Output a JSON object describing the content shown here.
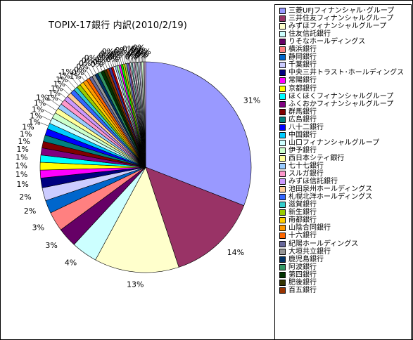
{
  "chart_data": {
    "type": "pie",
    "title": "TOPIX-17銀行 内訳(2010/2/19)",
    "legend_position": "right",
    "start": "top",
    "direction": "clockwise",
    "slices": [
      {
        "label": "三菱UFJフィナンシャル･グループ",
        "value": 31,
        "color": "#9999ff"
      },
      {
        "label": "三井住友フィナンシャルグループ",
        "value": 14,
        "color": "#993366"
      },
      {
        "label": "みずほフィナンシャルグループ",
        "value": 13,
        "color": "#ffffcc"
      },
      {
        "label": "住友信託銀行",
        "value": 4,
        "color": "#ccffff"
      },
      {
        "label": "りそなホールディングス",
        "value": 3,
        "color": "#660066"
      },
      {
        "label": "横浜銀行",
        "value": 3,
        "color": "#ff8080"
      },
      {
        "label": "静岡銀行",
        "value": 2,
        "color": "#0066cc"
      },
      {
        "label": "千葉銀行",
        "value": 2,
        "color": "#ccccff"
      },
      {
        "label": "中央三井トラスト･ホールディングス",
        "value": 1.5,
        "color": "#000080"
      },
      {
        "label": "常陽銀行",
        "value": 1.2,
        "color": "#ff00ff"
      },
      {
        "label": "京都銀行",
        "value": 1.2,
        "color": "#ffff00"
      },
      {
        "label": "ほくほくフィナンシャルグループ",
        "value": 1.1,
        "color": "#00ffff"
      },
      {
        "label": "ふくおかフィナンシャルグループ",
        "value": 1.1,
        "color": "#800080"
      },
      {
        "label": "群馬銀行",
        "value": 1,
        "color": "#800000"
      },
      {
        "label": "広島銀行",
        "value": 1,
        "color": "#008080"
      },
      {
        "label": "八十二銀行",
        "value": 1,
        "color": "#0000ff"
      },
      {
        "label": "中国銀行",
        "value": 0.9,
        "color": "#00ccff"
      },
      {
        "label": "山口フィナンシャルグループ",
        "value": 0.9,
        "color": "#ccffff"
      },
      {
        "label": "伊予銀行",
        "value": 0.9,
        "color": "#ccffcc"
      },
      {
        "label": "西日本シティ銀行",
        "value": 0.8,
        "color": "#ffff99"
      },
      {
        "label": "七十七銀行",
        "value": 0.8,
        "color": "#99ccff"
      },
      {
        "label": "スルガ銀行",
        "value": 0.8,
        "color": "#ff99cc"
      },
      {
        "label": "みずほ信託銀行",
        "value": 0.7,
        "color": "#cc99ff"
      },
      {
        "label": "池田泉州ホールディングス",
        "value": 0.7,
        "color": "#ffcc99"
      },
      {
        "label": "札幌北洋ホールディングス",
        "value": 0.7,
        "color": "#3366ff"
      },
      {
        "label": "滋賀銀行",
        "value": 0.6,
        "color": "#33cccc"
      },
      {
        "label": "新生銀行",
        "value": 0.6,
        "color": "#99cc00"
      },
      {
        "label": "南都銀行",
        "value": 0.6,
        "color": "#ffcc00"
      },
      {
        "label": "山陰合同銀行",
        "value": 0.6,
        "color": "#ff9900"
      },
      {
        "label": "十六銀行",
        "value": 0.5,
        "color": "#ff6600"
      },
      {
        "label": "紀陽ホールディングス",
        "value": 0.5,
        "color": "#666699"
      },
      {
        "label": "大垣共立銀行",
        "value": 0.5,
        "color": "#969696"
      },
      {
        "label": "鹿児島銀行",
        "value": 0.5,
        "color": "#003366"
      },
      {
        "label": "阿波銀行",
        "value": 0.5,
        "color": "#339966"
      },
      {
        "label": "第四銀行",
        "value": 0.5,
        "color": "#003300"
      },
      {
        "label": "肥後銀行",
        "value": 0.4,
        "color": "#333300"
      },
      {
        "label": "百五銀行",
        "value": 0.4,
        "color": "#993300"
      },
      {
        "label": "",
        "value": 0.4,
        "color": "#333399"
      },
      {
        "label": "",
        "value": 0.3,
        "color": "#cc0000"
      },
      {
        "label": "",
        "value": 0.3,
        "color": "#ffffff"
      },
      {
        "label": "",
        "value": 0.3,
        "color": "#99ccff"
      },
      {
        "label": "",
        "value": 0.3,
        "color": "#99ff99"
      },
      {
        "label": "",
        "value": 0.3,
        "color": "#ff00ff"
      },
      {
        "label": "",
        "value": 0.3,
        "color": "#00ff00"
      },
      {
        "label": "",
        "value": 0.3,
        "color": "#cccc00"
      },
      {
        "label": "",
        "value": 0.3,
        "color": "#99cc66"
      },
      {
        "label": "",
        "value": 0.3,
        "color": "#6666cc"
      },
      {
        "label": "",
        "value": 0.2,
        "color": "#cc6699"
      },
      {
        "label": "",
        "value": 0.2,
        "color": "#ffffff"
      },
      {
        "label": "",
        "value": 0.2,
        "color": "#66cccc"
      },
      {
        "label": "",
        "value": 0.2,
        "color": "#ffffff"
      },
      {
        "label": "",
        "value": 0.2,
        "color": "#cc99cc"
      },
      {
        "label": "",
        "value": 0.2,
        "color": "#ffffff"
      },
      {
        "label": "",
        "value": 0.2,
        "color": "#99cccc"
      },
      {
        "label": "",
        "value": 0.2,
        "color": "#ffffff"
      },
      {
        "label": "",
        "value": 0.2,
        "color": "#ccccff"
      },
      {
        "label": "",
        "value": 0.2,
        "color": "#ffffff"
      },
      {
        "label": "",
        "value": 0.2,
        "color": "#ccffcc"
      },
      {
        "label": "",
        "value": 0.2,
        "color": "#ffffff"
      },
      {
        "label": "",
        "value": 0.2,
        "color": "#ffccff"
      }
    ],
    "data_labels": [
      {
        "text": "31%",
        "slice": 0
      },
      {
        "text": "14%",
        "slice": 1
      },
      {
        "text": "13%",
        "slice": 2
      },
      {
        "text": "4%",
        "slice": 3
      },
      {
        "text": "3%",
        "slice": 4
      },
      {
        "text": "3%",
        "slice": 5
      },
      {
        "text": "2%",
        "slice": 6
      },
      {
        "text": "2%",
        "slice": 7
      },
      {
        "text": "1%",
        "slice": 8
      },
      {
        "text": "1%",
        "slice": 9
      },
      {
        "text": "1%",
        "slice": 10
      },
      {
        "text": "1%",
        "slice": 11
      },
      {
        "text": "1%",
        "slice": 12
      },
      {
        "text": "1%",
        "slice": 13
      },
      {
        "text": "1%",
        "slice": 14
      },
      {
        "text": "1%",
        "slice": 15
      },
      {
        "text": "1%",
        "slice": 16
      },
      {
        "text": "1%",
        "slice": 17
      },
      {
        "text": "1%",
        "slice": 18
      },
      {
        "text": "1%",
        "slice": 19
      },
      {
        "text": "1%",
        "slice": 20
      },
      {
        "text": "1%",
        "slice": 21
      },
      {
        "text": "1%",
        "slice": 22
      },
      {
        "text": "1%",
        "slice": 23
      },
      {
        "text": "1%",
        "slice": 24
      },
      {
        "text": "1%",
        "slice": 25
      },
      {
        "text": "1%",
        "slice": 26
      },
      {
        "text": "1%",
        "slice": 27
      },
      {
        "text": "1%",
        "slice": 28
      },
      {
        "text": "0%",
        "slice": 29
      },
      {
        "text": "0%",
        "slice": 30
      },
      {
        "text": "0%",
        "slice": 31
      },
      {
        "text": "0%",
        "slice": 32
      },
      {
        "text": "0%",
        "slice": 33
      },
      {
        "text": "0%",
        "slice": 34
      },
      {
        "text": "0%",
        "slice": 35
      },
      {
        "text": "0%",
        "slice": 36
      },
      {
        "text": "0%",
        "slice": 37
      },
      {
        "text": "0%",
        "slice": 38
      },
      {
        "text": "0%",
        "slice": 39
      },
      {
        "text": "0%",
        "slice": 40
      },
      {
        "text": "0%",
        "slice": 41
      },
      {
        "text": "0%",
        "slice": 42
      },
      {
        "text": "0%",
        "slice": 43
      },
      {
        "text": "0%",
        "slice": 44
      },
      {
        "text": "0%",
        "slice": 45
      },
      {
        "text": "0%",
        "slice": 46
      },
      {
        "text": "0%",
        "slice": 47
      },
      {
        "text": "0%",
        "slice": 48
      },
      {
        "text": "0%",
        "slice": 49
      },
      {
        "text": "0%",
        "slice": 50
      },
      {
        "text": "0%",
        "slice": 51
      },
      {
        "text": "0%",
        "slice": 52
      },
      {
        "text": "0%",
        "slice": 53
      },
      {
        "text": "0%",
        "slice": 54
      },
      {
        "text": "0%",
        "slice": 55
      },
      {
        "text": "0%",
        "slice": 56
      },
      {
        "text": "0%",
        "slice": 57
      },
      {
        "text": "0%",
        "slice": 58
      },
      {
        "text": "0%",
        "slice": 59
      }
    ]
  }
}
